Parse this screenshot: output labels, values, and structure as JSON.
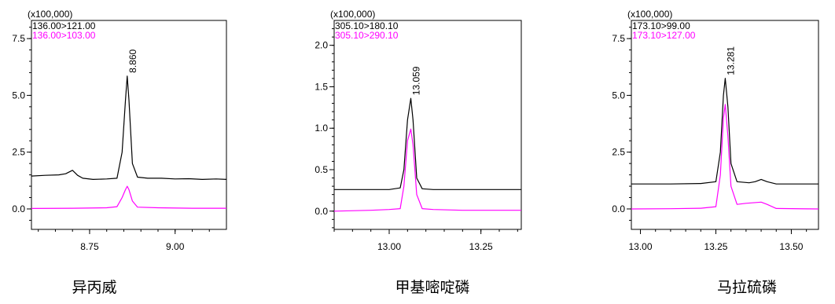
{
  "chart_data": [
    {
      "type": "line",
      "caption": "异丙威",
      "y_multiplier": "(x100,000)",
      "xlim": [
        8.58,
        9.15
      ],
      "ylim": [
        -0.9,
        8.3
      ],
      "xticks": [
        "8.75",
        "9.00"
      ],
      "yticks": [
        "0.0",
        "2.5",
        "5.0",
        "7.5"
      ],
      "peak_label": "8.860",
      "series": [
        {
          "name": "136.00>121.00",
          "color": "#000000",
          "x": [
            8.58,
            8.62,
            8.66,
            8.68,
            8.7,
            8.715,
            8.73,
            8.76,
            8.8,
            8.83,
            8.845,
            8.855,
            8.86,
            8.865,
            8.875,
            8.89,
            8.92,
            8.96,
            9.0,
            9.04,
            9.08,
            9.12,
            9.15
          ],
          "y": [
            1.45,
            1.48,
            1.5,
            1.55,
            1.7,
            1.48,
            1.35,
            1.3,
            1.32,
            1.35,
            2.5,
            4.8,
            5.85,
            4.8,
            2.0,
            1.4,
            1.35,
            1.35,
            1.32,
            1.33,
            1.3,
            1.32,
            1.3
          ]
        },
        {
          "name": "136.00>103.00",
          "color": "#ff00ff",
          "x": [
            8.58,
            8.7,
            8.8,
            8.83,
            8.845,
            8.855,
            8.86,
            8.865,
            8.875,
            8.89,
            8.95,
            9.05,
            9.15
          ],
          "y": [
            0.02,
            0.03,
            0.05,
            0.1,
            0.5,
            0.85,
            1.0,
            0.85,
            0.35,
            0.08,
            0.05,
            0.03,
            0.03
          ]
        }
      ]
    },
    {
      "type": "line",
      "caption": "甲基嘧啶磷",
      "y_multiplier": "(x100,000)",
      "xlim": [
        12.85,
        13.36
      ],
      "ylim": [
        -0.22,
        2.3
      ],
      "xticks": [
        "13.00",
        "13.25"
      ],
      "yticks": [
        "0.0",
        "0.5",
        "1.0",
        "1.5",
        "2.0"
      ],
      "peak_label": "13.059",
      "series": [
        {
          "name": "305.10>180.10",
          "color": "#000000",
          "x": [
            12.85,
            12.95,
            13.0,
            13.03,
            13.04,
            13.05,
            13.059,
            13.065,
            13.075,
            13.09,
            13.12,
            13.2,
            13.36
          ],
          "y": [
            0.26,
            0.26,
            0.26,
            0.28,
            0.5,
            1.1,
            1.36,
            1.1,
            0.4,
            0.27,
            0.26,
            0.26,
            0.26
          ],
          "y_axis_note": "values in units of 100,000"
        },
        {
          "name": "305.10>290.10",
          "color": "#ff00ff",
          "x": [
            12.85,
            12.95,
            13.0,
            13.03,
            13.04,
            13.05,
            13.059,
            13.065,
            13.075,
            13.09,
            13.12,
            13.2,
            13.36
          ],
          "y": [
            0.0,
            0.01,
            0.02,
            0.03,
            0.3,
            0.85,
            0.99,
            0.8,
            0.2,
            0.03,
            0.02,
            0.01,
            0.01
          ]
        }
      ]
    },
    {
      "type": "line",
      "caption": "马拉硫磷",
      "y_multiplier": "(x100,000)",
      "xlim": [
        12.97,
        13.59
      ],
      "ylim": [
        -0.9,
        8.3
      ],
      "xticks": [
        "13.00",
        "13.25",
        "13.50"
      ],
      "yticks": [
        "0.0",
        "2.5",
        "5.0",
        "7.5"
      ],
      "peak_label": "13.281",
      "series": [
        {
          "name": "173.10>99.00",
          "color": "#000000",
          "x": [
            12.97,
            13.1,
            13.2,
            13.25,
            13.265,
            13.275,
            13.281,
            13.29,
            13.3,
            13.32,
            13.36,
            13.38,
            13.4,
            13.42,
            13.45,
            13.59
          ],
          "y": [
            1.1,
            1.1,
            1.12,
            1.2,
            2.5,
            5.0,
            5.75,
            4.5,
            2.0,
            1.2,
            1.15,
            1.2,
            1.3,
            1.2,
            1.1,
            1.1
          ]
        },
        {
          "name": "173.10>127.00",
          "color": "#ff00ff",
          "x": [
            12.97,
            13.1,
            13.2,
            13.25,
            13.265,
            13.275,
            13.281,
            13.29,
            13.3,
            13.32,
            13.35,
            13.4,
            13.42,
            13.45,
            13.59
          ],
          "y": [
            0.0,
            0.01,
            0.03,
            0.1,
            1.5,
            4.0,
            4.6,
            3.2,
            1.0,
            0.2,
            0.25,
            0.3,
            0.2,
            0.02,
            0.0
          ]
        }
      ]
    }
  ]
}
